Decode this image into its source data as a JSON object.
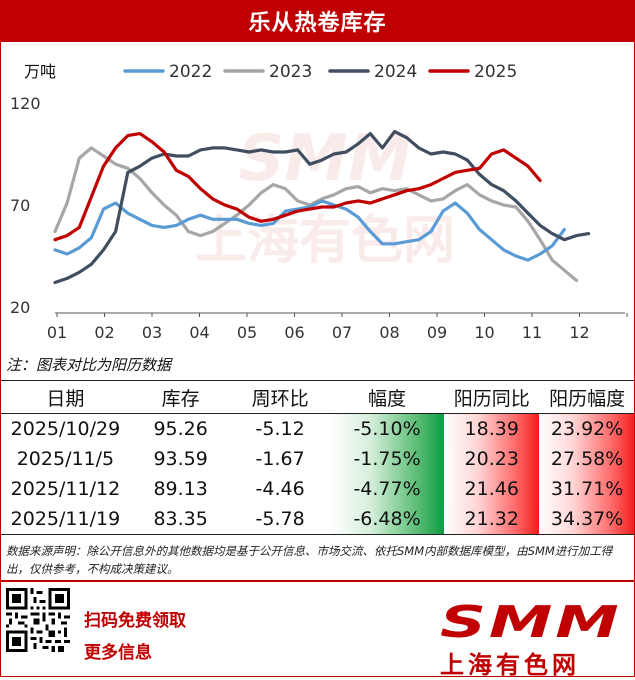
{
  "title": "乐从热卷库存",
  "chart_data": {
    "type": "line",
    "ylabel": "万吨",
    "ylim": [
      20,
      120
    ],
    "yticks": [
      20,
      70,
      120
    ],
    "xticks": [
      "01",
      "02",
      "03",
      "04",
      "05",
      "06",
      "07",
      "08",
      "09",
      "10",
      "11",
      "12"
    ],
    "grid": false,
    "legend_position": "top",
    "watermark": "SMM 上海有色网",
    "series": [
      {
        "name": "2022",
        "color": "#5b9bd5",
        "values": [
          48,
          46,
          49,
          54,
          68,
          71,
          66,
          63,
          60,
          59,
          60,
          63,
          65,
          63,
          63,
          63,
          61,
          60,
          61,
          67,
          68,
          69,
          72,
          70,
          68,
          64,
          57,
          51,
          51,
          52,
          53,
          57,
          67,
          71,
          66,
          58,
          53,
          48,
          45,
          43,
          46,
          50,
          58
        ]
      },
      {
        "name": "2023",
        "color": "#a6a6a6",
        "values": [
          57,
          71,
          93,
          98,
          94,
          90,
          88,
          83,
          76,
          70,
          65,
          57,
          55,
          57,
          61,
          65,
          70,
          76,
          80,
          78,
          72,
          70,
          73,
          75,
          78,
          79,
          76,
          78,
          77,
          78,
          75,
          72,
          73,
          77,
          80,
          75,
          72,
          70,
          69,
          62,
          53,
          43,
          38,
          33
        ]
      },
      {
        "name": "2024",
        "color": "#404e60",
        "values": [
          32,
          34,
          37,
          41,
          48,
          57,
          86,
          89,
          93,
          95,
          94,
          94,
          97,
          98,
          98,
          97,
          96,
          97,
          96,
          96,
          97,
          90,
          92,
          95,
          96,
          100,
          105,
          98,
          106,
          103,
          98,
          95,
          96,
          95,
          92,
          85,
          80,
          77,
          72,
          66,
          60,
          56,
          53,
          55,
          56
        ]
      },
      {
        "name": "2025",
        "color": "#c00000",
        "values": [
          53,
          55,
          59,
          74,
          89,
          98,
          104,
          105,
          101,
          96,
          87,
          84,
          78,
          73,
          70,
          68,
          64,
          62,
          63,
          65,
          67,
          68,
          69,
          69,
          71,
          72,
          71,
          73,
          75,
          77,
          78,
          80,
          83,
          86,
          87,
          88,
          95,
          97,
          93,
          89,
          82
        ]
      }
    ]
  },
  "note": "注：图表对比为阳历数据",
  "table": {
    "headers": [
      "日期",
      "库存",
      "周环比",
      "幅度",
      "阳历同比",
      "阳历幅度"
    ],
    "rows": [
      [
        "2025/10/29",
        "95.26",
        "-5.12",
        "-5.10%",
        "18.39",
        "23.92%"
      ],
      [
        "2025/11/5",
        "93.59",
        "-1.67",
        "-1.75%",
        "20.23",
        "27.58%"
      ],
      [
        "2025/11/12",
        "89.13",
        "-4.46",
        "-4.77%",
        "21.46",
        "31.71%"
      ],
      [
        "2025/11/19",
        "83.35",
        "-5.78",
        "-6.48%",
        "21.32",
        "34.37%"
      ]
    ]
  },
  "disclaimer": "数据来源声明：除公开信息外的其他数据均是基于公开信息、市场交流、依托SMM内部数据库模型，由SMM进行加工得出，仅供参考，不构成决策建议。",
  "footer": {
    "cta1": "扫码免费领取",
    "cta2": "更多信息",
    "logo_main": "SMM",
    "logo_sub": "上海有色网"
  }
}
